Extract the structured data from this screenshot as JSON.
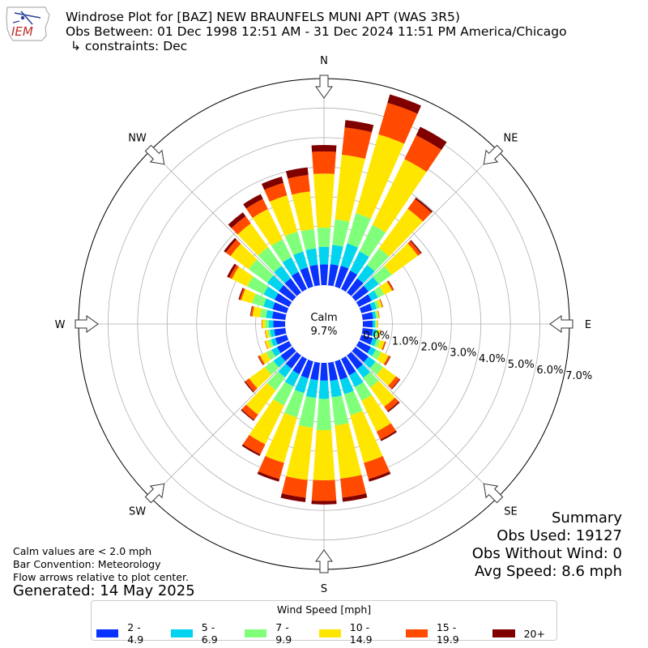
{
  "header": {
    "title_line1": "Windrose Plot for [BAZ] NEW BRAUNFELS MUNI APT (WAS 3R5)",
    "title_line2": "Obs Between: 01 Dec 1998 12:51 AM - 31 Dec 2024 11:51 PM America/Chicago",
    "title_line3": "↳ constraints: Dec",
    "logo_text": "IEM"
  },
  "summary": {
    "heading": "Summary",
    "obs_used": "Obs Used: 19127",
    "obs_without_wind": "Obs Without Wind: 0",
    "avg_speed": "Avg Speed: 8.6 mph"
  },
  "notes": {
    "calm_note": "Calm values are < 2.0 mph",
    "bar_convention": "Bar Convention: Meteorology",
    "flow_arrows": "Flow arrows relative to plot center.",
    "generated": "Generated: 14 May 2025"
  },
  "chart_data": {
    "type": "windrose",
    "calm_label": "Calm",
    "calm_value": "9.7%",
    "radial_unit": "%",
    "radial_ticks": [
      "0.0%",
      "1.0%",
      "2.0%",
      "3.0%",
      "4.0%",
      "5.0%",
      "6.0%",
      "7.0%"
    ],
    "radial_max": 7.0,
    "direction_labels": [
      "N",
      "NE",
      "E",
      "SE",
      "S",
      "SW",
      "W",
      "NW"
    ],
    "legend_title": "Wind Speed [mph]",
    "bins": [
      "2 - 4.9",
      "5 - 6.9",
      "7 - 9.9",
      "10 - 14.9",
      "15 - 19.9",
      "20+"
    ],
    "colors": [
      "#0a32ff",
      "#00d4ee",
      "#80ff7a",
      "#ffe600",
      "#ff4a00",
      "#800000"
    ],
    "directions_deg": [
      0,
      10,
      20,
      30,
      40,
      50,
      60,
      70,
      80,
      90,
      100,
      110,
      120,
      130,
      140,
      150,
      160,
      170,
      180,
      190,
      200,
      210,
      220,
      230,
      240,
      250,
      260,
      270,
      280,
      290,
      300,
      310,
      320,
      330,
      340,
      350
    ],
    "cumulative_percent": [
      [
        0.7,
        1.3,
        1.95,
        3.78,
        4.53,
        4.75
      ],
      [
        0.72,
        1.38,
        2.25,
        4.45,
        5.38,
        5.63
      ],
      [
        0.74,
        1.52,
        2.59,
        5.37,
        6.48,
        6.78
      ],
      [
        0.7,
        1.42,
        2.42,
        4.9,
        5.8,
        6.12
      ],
      [
        0.6,
        1.16,
        1.86,
        3.51,
        3.92,
        3.98
      ],
      [
        0.55,
        0.98,
        1.52,
        2.62,
        2.74,
        2.78
      ],
      [
        0.48,
        0.72,
        0.95,
        1.25,
        1.3,
        1.32
      ],
      [
        0.38,
        0.54,
        0.64,
        0.74,
        0.76,
        0.77
      ],
      [
        0.36,
        0.46,
        0.52,
        0.56,
        0.58,
        0.58
      ],
      [
        0.33,
        0.42,
        0.46,
        0.5,
        0.51,
        0.51
      ],
      [
        0.35,
        0.46,
        0.54,
        0.6,
        0.62,
        0.62
      ],
      [
        0.4,
        0.54,
        0.66,
        0.82,
        0.86,
        0.87
      ],
      [
        0.45,
        0.64,
        0.84,
        1.12,
        1.18,
        1.2
      ],
      [
        0.55,
        0.84,
        1.16,
        1.7,
        1.85,
        1.88
      ],
      [
        0.58,
        0.94,
        1.35,
        2.15,
        2.33,
        2.38
      ],
      [
        0.62,
        1.06,
        1.58,
        2.74,
        3.04,
        3.1
      ],
      [
        0.65,
        1.16,
        1.9,
        3.58,
        4.15,
        4.24
      ],
      [
        0.62,
        1.18,
        2.14,
        3.95,
        4.6,
        4.74
      ],
      [
        0.6,
        1.22,
        2.28,
        3.98,
        4.68,
        4.8
      ],
      [
        0.6,
        1.2,
        2.22,
        4.0,
        4.6,
        4.75
      ],
      [
        0.6,
        1.12,
        1.98,
        3.58,
        4.15,
        4.24
      ],
      [
        0.58,
        1.04,
        1.76,
        3.22,
        3.6,
        3.66
      ],
      [
        0.55,
        0.92,
        1.46,
        2.48,
        2.7,
        2.74
      ],
      [
        0.5,
        0.8,
        1.16,
        1.82,
        1.98,
        2.02
      ],
      [
        0.45,
        0.66,
        0.86,
        1.1,
        1.16,
        1.18
      ],
      [
        0.4,
        0.55,
        0.65,
        0.76,
        0.78,
        0.78
      ],
      [
        0.38,
        0.52,
        0.6,
        0.68,
        0.7,
        0.7
      ],
      [
        0.4,
        0.56,
        0.68,
        0.78,
        0.8,
        0.8
      ],
      [
        0.45,
        0.66,
        0.86,
        1.12,
        1.18,
        1.2
      ],
      [
        0.5,
        0.82,
        1.22,
        1.6,
        1.66,
        1.7
      ],
      [
        0.55,
        0.96,
        1.58,
        2.16,
        2.26,
        2.34
      ],
      [
        0.58,
        1.06,
        1.84,
        2.6,
        2.8,
        2.88
      ],
      [
        0.6,
        1.12,
        1.9,
        2.9,
        3.2,
        3.36
      ],
      [
        0.65,
        1.2,
        1.88,
        3.02,
        3.4,
        3.58
      ],
      [
        0.68,
        1.24,
        1.94,
        3.22,
        3.66,
        3.88
      ],
      [
        0.7,
        1.26,
        1.92,
        3.2,
        3.76,
        4.02
      ]
    ]
  }
}
